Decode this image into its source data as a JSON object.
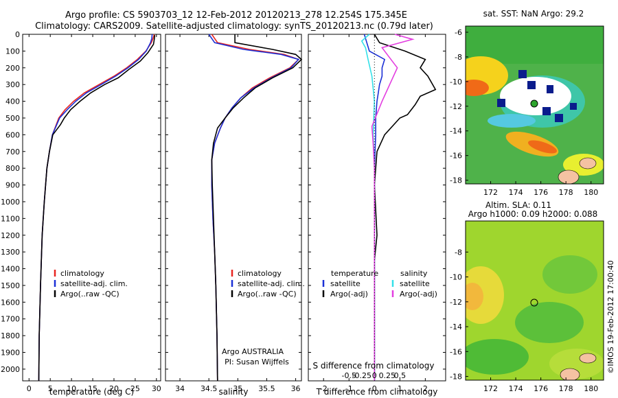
{
  "header": {
    "line1": "Argo profile: CS 5903703_12 12-Feb-2012 20120213_278 12.254S 175.345E",
    "line2": "Climatology: CARS2009. Satellite-adjusted climatology: synTS_20120213.nc (0.79d later)"
  },
  "colors": {
    "clim": "#e8241f",
    "sat": "#1a2fd6",
    "argo": "#000000",
    "sal_sat": "#33e0e8",
    "sal_argo": "#e33de0"
  },
  "chart_data": [
    {
      "type": "line",
      "id": "temperature",
      "xlabel": "temperature (deg C)",
      "xlim": [
        -1.5,
        31
      ],
      "xticks": [
        0,
        5,
        10,
        15,
        20,
        25,
        30
      ],
      "ylim": [
        2070,
        0
      ],
      "yticks": [
        0,
        100,
        200,
        300,
        400,
        500,
        600,
        700,
        800,
        900,
        1000,
        1100,
        1200,
        1300,
        1400,
        1500,
        1600,
        1700,
        1800,
        1900,
        2000
      ],
      "legend": [
        "climatology",
        "satellite-adj. clim.",
        "Argo(..raw -QC)"
      ],
      "series": [
        {
          "name": "climatology",
          "color": "clim",
          "x": [
            29.5,
            29.2,
            28.8,
            27.5,
            25.5,
            23.0,
            20.0,
            16.5,
            13.0,
            10.5,
            8.5,
            7.0,
            5.5,
            4.8,
            4.2,
            3.6,
            3.1,
            2.7,
            2.4,
            2.3
          ],
          "y": [
            0,
            25,
            50,
            100,
            150,
            200,
            250,
            300,
            350,
            400,
            450,
            500,
            600,
            700,
            800,
            1000,
            1200,
            1500,
            1800,
            2070
          ]
        },
        {
          "name": "satellite-adj. clim.",
          "color": "sat",
          "x": [
            29.0,
            28.9,
            28.6,
            27.6,
            25.8,
            23.3,
            20.4,
            17.0,
            13.5,
            11.0,
            9.0,
            7.2,
            5.5,
            4.8,
            4.2,
            3.6,
            3.1,
            2.7,
            2.4,
            2.3
          ],
          "y": [
            0,
            25,
            50,
            100,
            150,
            200,
            250,
            300,
            350,
            400,
            450,
            500,
            600,
            700,
            800,
            1000,
            1200,
            1500,
            1800,
            2070
          ]
        },
        {
          "name": "Argo(..raw -QC)",
          "color": "argo",
          "x": [
            29.6,
            29.5,
            29.3,
            28.0,
            26.2,
            23.5,
            21.0,
            17.8,
            14.5,
            12.0,
            9.8,
            8.3,
            7.4,
            5.6,
            4.8,
            4.2,
            3.6,
            3.1,
            2.7,
            2.4,
            2.3
          ],
          "y": [
            5,
            30,
            60,
            110,
            160,
            210,
            260,
            300,
            350,
            400,
            450,
            500,
            540,
            600,
            700,
            800,
            1000,
            1200,
            1500,
            1800,
            2070
          ]
        }
      ]
    },
    {
      "type": "line",
      "id": "salinity",
      "xlabel": "salinity",
      "xlim": [
        33.75,
        36.1
      ],
      "xticks": [
        34,
        34.5,
        35,
        35.5,
        36
      ],
      "ylim": [
        2070,
        0
      ],
      "legend": [
        "climatology",
        "satellite-adj. clim.",
        "Argo(..raw -QC)"
      ],
      "annotations": [
        "Argo AUSTRALIA",
        "PI: Susan Wijffels"
      ],
      "series": [
        {
          "name": "climatology",
          "color": "clim",
          "x": [
            34.55,
            34.65,
            35.2,
            35.8,
            36.05,
            35.9,
            35.55,
            35.25,
            35.05,
            34.9,
            34.78,
            34.7,
            34.6,
            34.55,
            34.55,
            34.57,
            34.6,
            34.62,
            34.64,
            34.65
          ],
          "y": [
            0,
            50,
            90,
            120,
            150,
            200,
            260,
            320,
            380,
            440,
            500,
            560,
            650,
            750,
            900,
            1100,
            1300,
            1500,
            1800,
            2070
          ]
        },
        {
          "name": "satellite-adj. clim.",
          "color": "sat",
          "x": [
            34.5,
            34.6,
            35.1,
            35.75,
            36.05,
            35.92,
            35.58,
            35.28,
            35.05,
            34.9,
            34.78,
            34.7,
            34.6,
            34.55,
            34.55,
            34.57,
            34.6,
            34.62,
            34.64,
            34.65
          ],
          "y": [
            0,
            50,
            90,
            120,
            150,
            200,
            260,
            320,
            380,
            440,
            500,
            560,
            650,
            750,
            900,
            1100,
            1300,
            1500,
            1800,
            2070
          ]
        },
        {
          "name": "Argo(..raw -QC)",
          "color": "argo",
          "x": [
            34.95,
            34.95,
            35.6,
            36.0,
            36.1,
            35.95,
            35.6,
            35.3,
            35.1,
            34.92,
            34.78,
            34.65,
            34.58,
            34.55,
            34.56,
            34.58,
            34.6,
            34.62,
            34.64,
            34.65
          ],
          "y": [
            0,
            50,
            90,
            120,
            150,
            200,
            260,
            320,
            380,
            440,
            500,
            560,
            650,
            750,
            900,
            1100,
            1300,
            1500,
            1800,
            2070
          ]
        }
      ]
    },
    {
      "type": "line",
      "id": "difference",
      "xlabel": "T difference from climatology",
      "xlabel_top": "S difference from climatology",
      "xlim": [
        -2.6,
        2.8
      ],
      "xticks": [
        -2,
        -1,
        0,
        1,
        2
      ],
      "xticks_top": [
        -0.5,
        -0.25,
        0,
        0.25,
        0.5
      ],
      "ylim": [
        2070,
        0
      ],
      "legend_left_title": "temperature",
      "legend_right_title": "salinity",
      "legend": [
        "satellite",
        "Argo(-adj)",
        "satellite",
        "Argo(-adj)"
      ],
      "series": [
        {
          "name": "T satellite",
          "color": "sat",
          "x": [
            -0.4,
            -0.3,
            -0.2,
            0.4,
            0.3,
            0.3,
            0.2,
            0.15,
            0.1,
            0.05,
            0.05,
            0.0,
            0.0,
            0.0,
            0.0,
            0.0
          ],
          "y": [
            0,
            50,
            100,
            150,
            200,
            250,
            300,
            350,
            400,
            500,
            600,
            800,
            1000,
            1400,
            1800,
            2070
          ]
        },
        {
          "name": "T Argo(-adj)",
          "color": "argo",
          "x": [
            0.0,
            0.2,
            1.2,
            2.0,
            1.8,
            2.1,
            2.4,
            1.8,
            1.6,
            1.3,
            1.0,
            0.4,
            0.1,
            0.0,
            0.1,
            0.0,
            0.0,
            0.0,
            0.0
          ],
          "y": [
            0,
            50,
            100,
            150,
            200,
            250,
            330,
            370,
            420,
            480,
            500,
            600,
            700,
            900,
            1200,
            1350,
            1400,
            1800,
            2070
          ]
        },
        {
          "name": "S satellite",
          "color": "sal_sat",
          "x": [
            -0.2,
            -0.5,
            -0.35,
            -0.25,
            -0.1,
            0.0,
            -0.05,
            0.0,
            0.0,
            0.0,
            0.0
          ],
          "y": [
            0,
            40,
            80,
            150,
            250,
            400,
            600,
            800,
            1100,
            1500,
            2070
          ]
        },
        {
          "name": "S Argo(-adj)",
          "color": "sal_argo",
          "x": [
            0.8,
            1.5,
            0.3,
            0.5,
            0.9,
            0.6,
            0.3,
            -0.1,
            -0.05,
            0.0,
            0.0,
            0.0
          ],
          "y": [
            0,
            30,
            80,
            120,
            200,
            300,
            400,
            550,
            650,
            800,
            1200,
            2070
          ]
        }
      ]
    },
    {
      "type": "heatmap",
      "id": "sst-map",
      "title": "sat. SST: NaN Argo: 29.2",
      "xlim": [
        170,
        181
      ],
      "ylim": [
        -18.3,
        -5.5
      ],
      "xticks": [
        172,
        174,
        176,
        178,
        180
      ],
      "yticks": [
        -6,
        -8,
        -10,
        -12,
        -14,
        -16,
        -18
      ]
    },
    {
      "type": "heatmap",
      "id": "sla-map",
      "title": "Altim. SLA: 0.11",
      "title2": "Argo h1000: 0.09 h2000: 0.088",
      "xlim": [
        170,
        181
      ],
      "ylim": [
        -18.3,
        -5.5
      ],
      "xticks": [
        172,
        174,
        176,
        178,
        180
      ],
      "yticks": [
        -8,
        -10,
        -12,
        -14,
        -16,
        -18
      ]
    }
  ],
  "credit": "©IMOS 19-Feb-2012 17:00:40"
}
